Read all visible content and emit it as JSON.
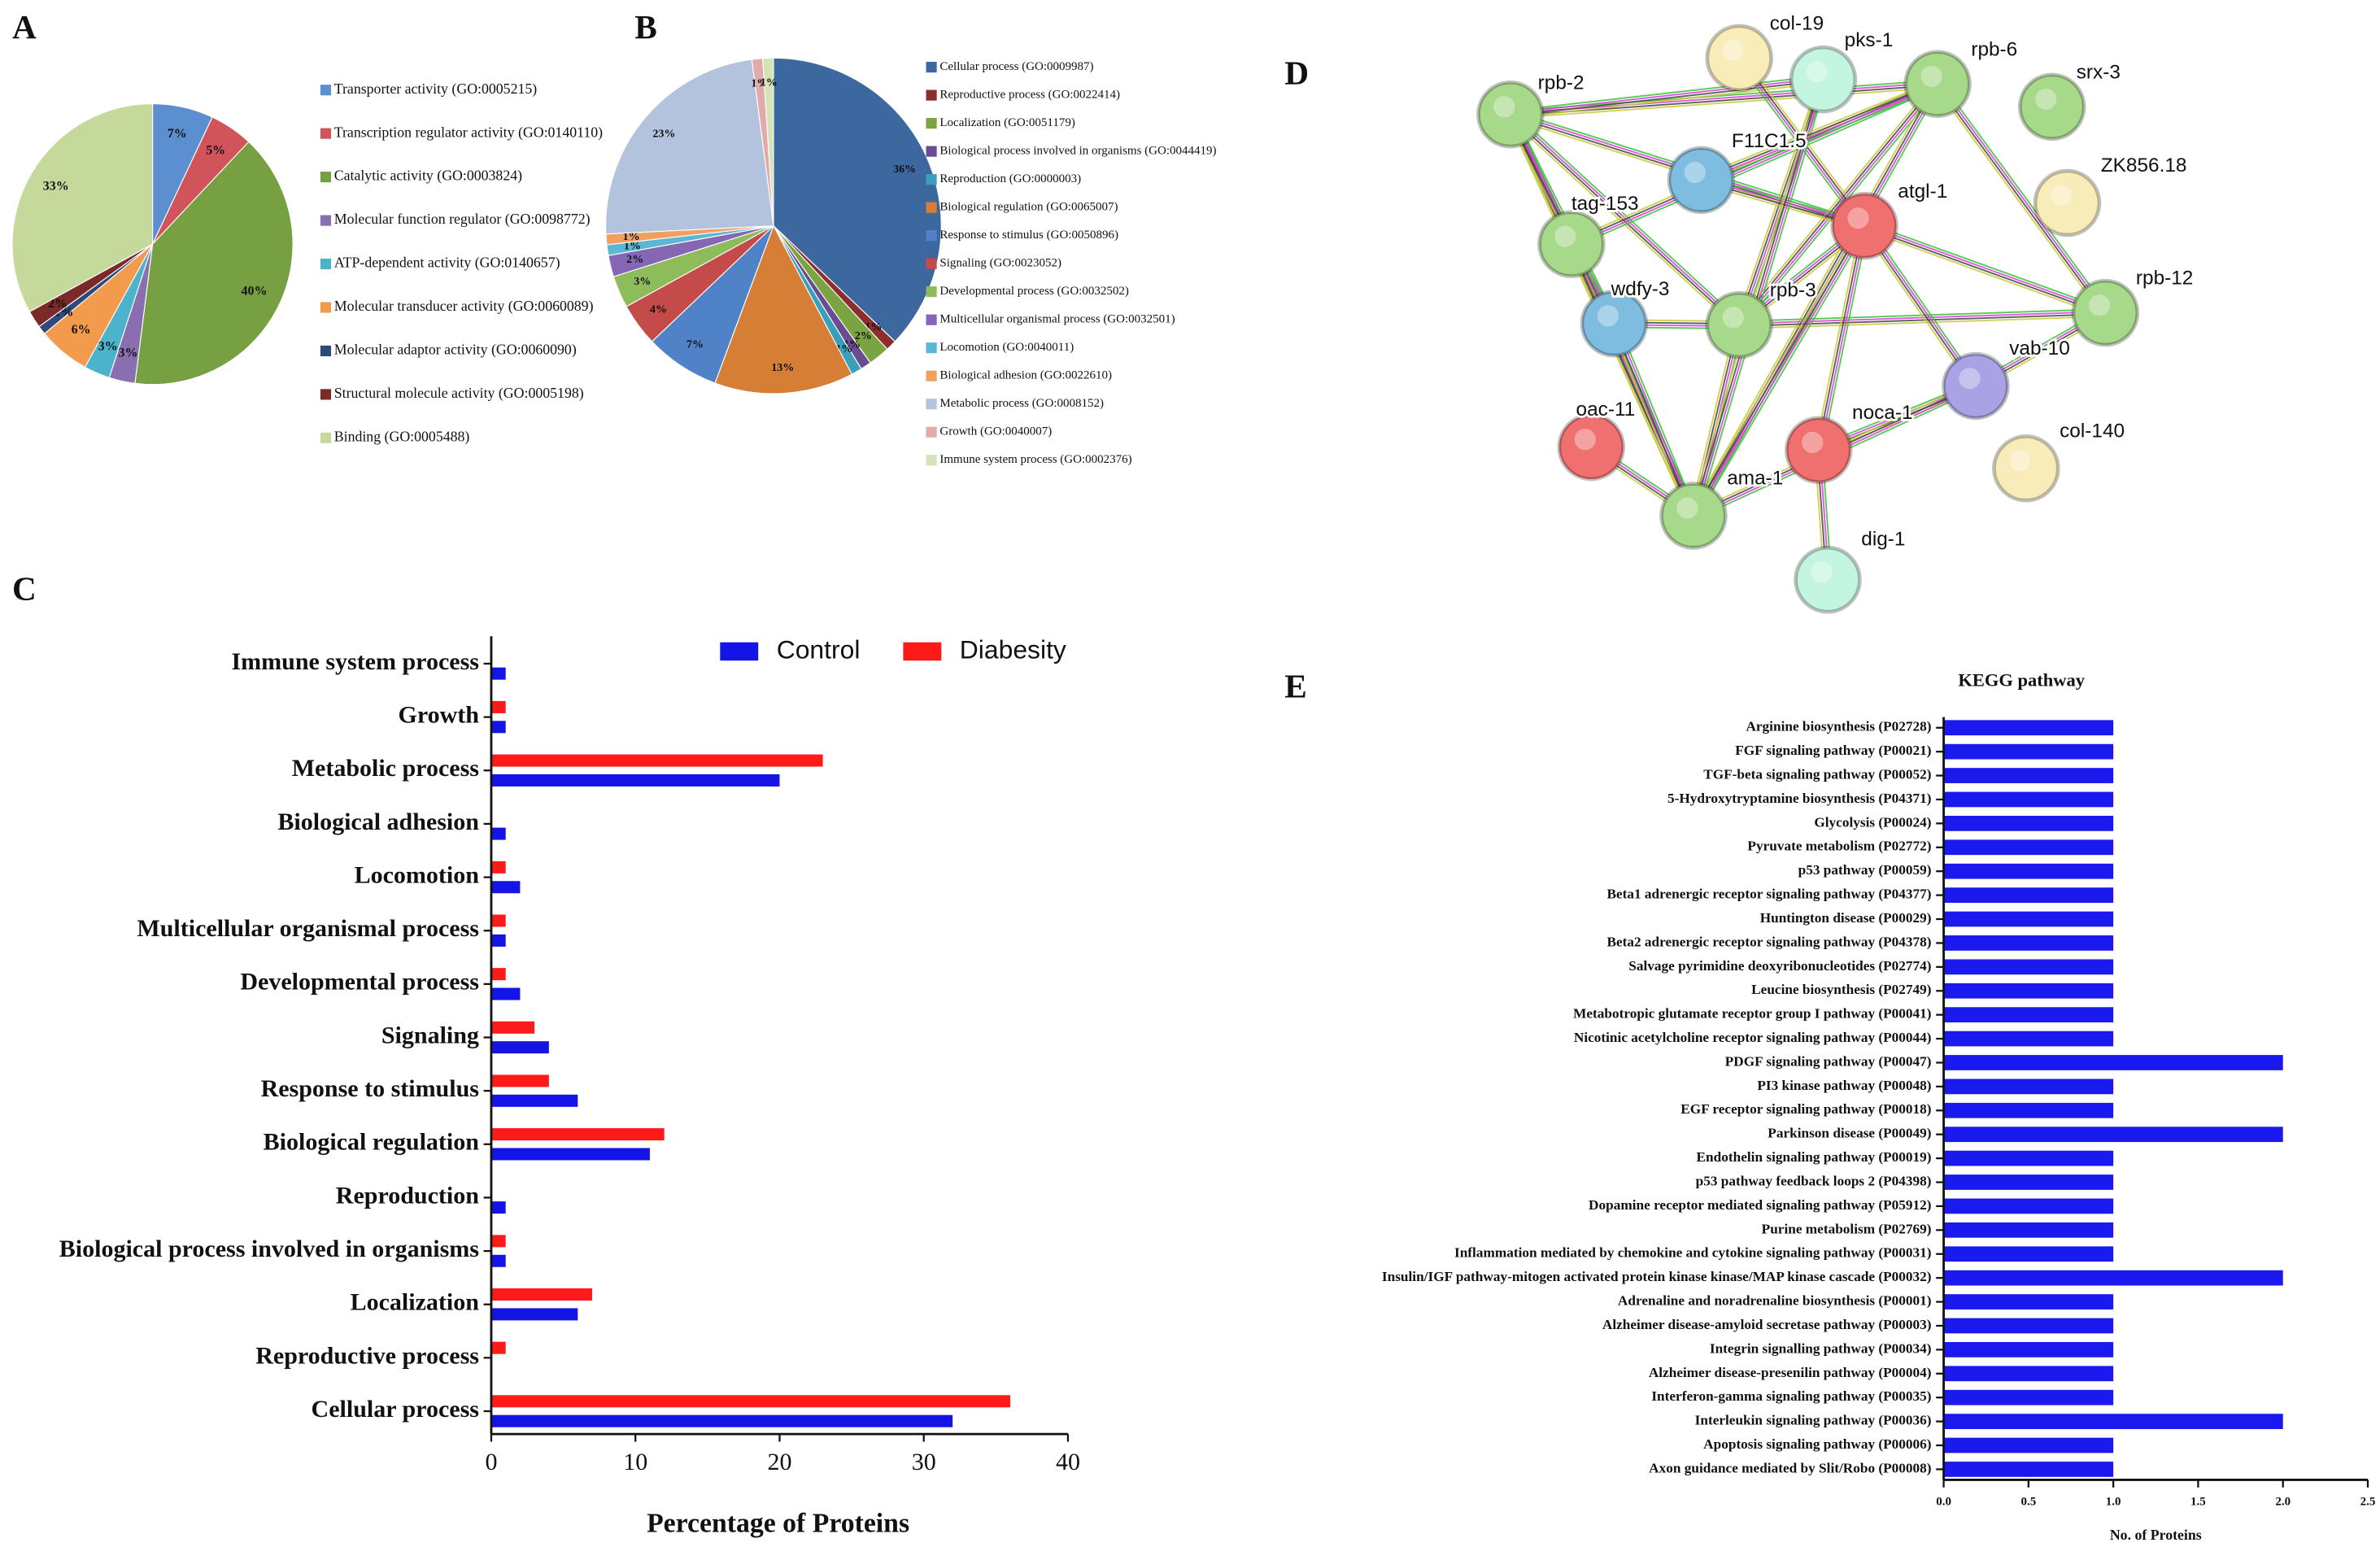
{
  "chart_data": [
    {
      "panel": "A",
      "type": "pie",
      "categories": [
        "Transporter activity (GO:0005215)",
        "Transcription regulator activity (GO:0140110)",
        "Catalytic activity (GO:0003824)",
        "Molecular function regulator (GO:0098772)",
        "ATP-dependent activity (GO:0140657)",
        "Molecular transducer activity (GO:0060089)",
        "Molecular adaptor activity (GO:0060090)",
        "Structural molecule activity (GO:0005198)",
        "Binding (GO:0005488)"
      ],
      "values": [
        7,
        5,
        40,
        3,
        3,
        6,
        1,
        2,
        33
      ],
      "value_labels": [
        "7%",
        "5%",
        "40%",
        "3%",
        "3%",
        "6%",
        "1%",
        "2%",
        "33%"
      ],
      "colors": [
        "#5b8fd0",
        "#d0545a",
        "#76a041",
        "#8a6fb0",
        "#4bb3cc",
        "#f39b4c",
        "#2e4a7a",
        "#7b2a2a",
        "#c5d99a"
      ]
    },
    {
      "panel": "B",
      "type": "pie",
      "categories": [
        "Cellular process (GO:0009987)",
        "Reproductive process (GO:0022414)",
        "Localization (GO:0051179)",
        "Biological process involved in organisms (GO:0044419)",
        "Reproduction (GO:0000003)",
        "Biological regulation (GO:0065007)",
        "Response to stimulus (GO:0050896)",
        "Signaling (GO:0023052)",
        "Developmental process (GO:0032502)",
        "Multicellular organismal process (GO:0032501)",
        "Locomotion (GO:0040011)",
        "Biological adhesion (GO:0022610)",
        "Metabolic process (GO:0008152)",
        "Growth (GO:0040007)",
        "Immune system process (GO:0002376)"
      ],
      "values": [
        36,
        1,
        2,
        1,
        1,
        13,
        7,
        4,
        3,
        2,
        1,
        1,
        23,
        1,
        1
      ],
      "value_labels": [
        "36%",
        "1%",
        "2%",
        "1%",
        "1%",
        "13%",
        "7%",
        "4%",
        "3%",
        "2%",
        "1%",
        "1%",
        "23%",
        "1%",
        "1%"
      ],
      "colors": [
        "#3d679f",
        "#8c2e2e",
        "#7aa43f",
        "#6a4c93",
        "#3a9fb9",
        "#d67e36",
        "#4f82c6",
        "#c54b4b",
        "#8fbc5a",
        "#8466b4",
        "#5bb8d4",
        "#f0a060",
        "#b3c2dd",
        "#e2aaa8",
        "#d4e3b8"
      ]
    },
    {
      "panel": "C",
      "type": "bar",
      "orientation": "horizontal",
      "categories": [
        "Immune system process",
        "Growth",
        "Metabolic process",
        "Biological adhesion",
        "Locomotion",
        "Multicellular organismal process",
        "Developmental process",
        "Signaling",
        "Response to stimulus",
        "Biological regulation",
        "Reproduction",
        "Biological process involved in organisms",
        "Localization",
        "Reproductive process",
        "Cellular process"
      ],
      "series": [
        {
          "name": "Control",
          "color": "#1414e6",
          "values": [
            1,
            1,
            20,
            1,
            2,
            1,
            2,
            4,
            6,
            11,
            1,
            1,
            6,
            0,
            32
          ]
        },
        {
          "name": "Diabesity",
          "color": "#ff1a1a",
          "values": [
            0,
            1,
            23,
            0,
            1,
            1,
            1,
            3,
            4,
            12,
            0,
            1,
            7,
            1,
            36
          ]
        }
      ],
      "xlim": [
        0,
        40
      ],
      "xticks": [
        0,
        10,
        20,
        30,
        40
      ],
      "xlabel": "Percentage of Proteins",
      "legend": "upper right"
    },
    {
      "panel": "D",
      "type": "network",
      "nodes": [
        {
          "label": "rpb-2",
          "color": "#a6d98a"
        },
        {
          "label": "col-19",
          "color": "#f8ecb8"
        },
        {
          "label": "pks-1",
          "color": "#c4f5e0"
        },
        {
          "label": "rpb-6",
          "color": "#a6d98a"
        },
        {
          "label": "srx-3",
          "color": "#a6d98a"
        },
        {
          "label": "F11C1.5",
          "color": "#7fbde0"
        },
        {
          "label": "ZK856.18",
          "color": "#f8ecb8"
        },
        {
          "label": "atgl-1",
          "color": "#f07070"
        },
        {
          "label": "tag-153",
          "color": "#a6d98a"
        },
        {
          "label": "wdfy-3",
          "color": "#7fbde0"
        },
        {
          "label": "rpb-3",
          "color": "#a6d98a"
        },
        {
          "label": "rpb-12",
          "color": "#a6d98a"
        },
        {
          "label": "vab-10",
          "color": "#a9a3e6"
        },
        {
          "label": "oac-11",
          "color": "#f07070"
        },
        {
          "label": "noca-1",
          "color": "#f07070"
        },
        {
          "label": "col-140",
          "color": "#f8ecb8"
        },
        {
          "label": "ama-1",
          "color": "#a6d98a"
        },
        {
          "label": "dig-1",
          "color": "#c4f5e0"
        }
      ]
    },
    {
      "panel": "E",
      "type": "bar",
      "orientation": "horizontal",
      "title": "KEGG pathway",
      "categories": [
        "Arginine biosynthesis (P02728)",
        "FGF signaling pathway (P00021)",
        "TGF-beta signaling pathway (P00052)",
        "5-Hydroxytryptamine biosynthesis (P04371)",
        "Glycolysis (P00024)",
        "Pyruvate metabolism (P02772)",
        "p53 pathway (P00059)",
        "Beta1 adrenergic receptor signaling pathway (P04377)",
        "Huntington disease (P00029)",
        "Beta2 adrenergic receptor signaling pathway (P04378)",
        "Salvage pyrimidine deoxyribonucleotides (P02774)",
        "Leucine biosynthesis (P02749)",
        "Metabotropic glutamate receptor group I pathway (P00041)",
        "Nicotinic acetylcholine receptor signaling pathway (P00044)",
        "PDGF signaling pathway (P00047)",
        "PI3 kinase pathway (P00048)",
        "EGF receptor signaling pathway (P00018)",
        "Parkinson disease (P00049)",
        "Endothelin signaling pathway (P00019)",
        "p53 pathway feedback loops 2 (P04398)",
        "Dopamine receptor mediated signaling pathway (P05912)",
        "Purine metabolism (P02769)",
        "Inflammation mediated by chemokine and cytokine signaling pathway (P00031)",
        "Insulin/IGF pathway-mitogen activated protein kinase kinase/MAP kinase cascade (P00032)",
        "Adrenaline and noradrenaline biosynthesis (P00001)",
        "Alzheimer disease-amyloid secretase pathway (P00003)",
        "Integrin signalling pathway (P00034)",
        "Alzheimer disease-presenilin pathway (P00004)",
        "Interferon-gamma signaling pathway (P00035)",
        "Interleukin signaling pathway (P00036)",
        "Apoptosis signaling pathway (P00006)",
        "Axon guidance mediated by Slit/Robo (P00008)"
      ],
      "values": [
        1,
        1,
        1,
        1,
        1,
        1,
        1,
        1,
        1,
        1,
        1,
        1,
        1,
        1,
        2,
        1,
        1,
        2,
        1,
        1,
        1,
        1,
        1,
        2,
        1,
        1,
        1,
        1,
        1,
        2,
        1,
        1
      ],
      "color": "#1a1aee",
      "xlim": [
        0,
        2.5
      ],
      "xticks": [
        {
          "value": 0,
          "label": "0.0"
        },
        0.5,
        {
          "value": 1,
          "label": "1.0"
        },
        1.5,
        {
          "value": 2,
          "label": "2.0"
        },
        2.5
      ],
      "xlabel": "No. of Proteins"
    }
  ]
}
